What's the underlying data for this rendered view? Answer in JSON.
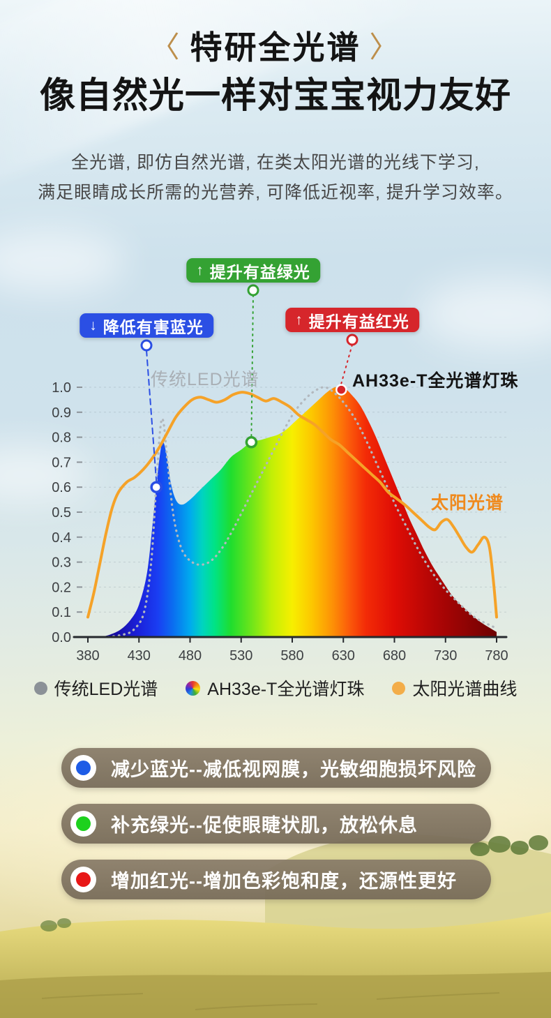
{
  "header": {
    "bracket_left": "〈",
    "bracket_right": "〉",
    "bracket_color": "#bd8f4c",
    "title": "特研全光谱",
    "subtitle": "像自然光一样对宝宝视力友好",
    "desc_line1": "全光谱, 即仿自然光谱, 在类太阳光谱的光线下学习,",
    "desc_line2": "满足眼睛成长所需的光营养, 可降低近视率, 提升学习效率。"
  },
  "chart_data": {
    "type": "area",
    "title": "",
    "xlabel": "",
    "ylabel": "",
    "xlim": [
      380,
      780
    ],
    "ylim": [
      0,
      1
    ],
    "grid": true,
    "xticks": [
      380,
      430,
      480,
      530,
      580,
      630,
      680,
      730,
      780
    ],
    "yticks": [
      "1.0",
      "0.9",
      "0.8",
      "0.7",
      "0.6",
      "0.5",
      "0.4",
      "0.3",
      "0.2",
      "0.1",
      "0.0"
    ],
    "series": [
      {
        "id": "ah33e",
        "name": "AH33e-T全光谱灯珠",
        "kind": "area",
        "fill": "spectrum",
        "points": [
          [
            393,
            0
          ],
          [
            402,
            0.01
          ],
          [
            412,
            0.03
          ],
          [
            422,
            0.07
          ],
          [
            430,
            0.13
          ],
          [
            438,
            0.26
          ],
          [
            444,
            0.48
          ],
          [
            449,
            0.68
          ],
          [
            453,
            0.78
          ],
          [
            457,
            0.73
          ],
          [
            461,
            0.62
          ],
          [
            466,
            0.55
          ],
          [
            472,
            0.53
          ],
          [
            480,
            0.55
          ],
          [
            490,
            0.59
          ],
          [
            500,
            0.63
          ],
          [
            510,
            0.67
          ],
          [
            520,
            0.72
          ],
          [
            530,
            0.75
          ],
          [
            540,
            0.78
          ],
          [
            550,
            0.79
          ],
          [
            558,
            0.8
          ],
          [
            566,
            0.81
          ],
          [
            574,
            0.83
          ],
          [
            582,
            0.86
          ],
          [
            590,
            0.89
          ],
          [
            598,
            0.92
          ],
          [
            606,
            0.95
          ],
          [
            614,
            0.98
          ],
          [
            622,
            1.0
          ],
          [
            630,
            1.0
          ],
          [
            638,
            0.97
          ],
          [
            646,
            0.93
          ],
          [
            654,
            0.87
          ],
          [
            662,
            0.8
          ],
          [
            670,
            0.72
          ],
          [
            678,
            0.64
          ],
          [
            686,
            0.56
          ],
          [
            694,
            0.48
          ],
          [
            702,
            0.41
          ],
          [
            710,
            0.34
          ],
          [
            718,
            0.28
          ],
          [
            726,
            0.23
          ],
          [
            734,
            0.18
          ],
          [
            742,
            0.14
          ],
          [
            750,
            0.11
          ],
          [
            758,
            0.08
          ],
          [
            766,
            0.055
          ],
          [
            774,
            0.035
          ],
          [
            780,
            0.02
          ]
        ]
      },
      {
        "id": "led",
        "name": "传统LED光谱",
        "kind": "line",
        "dash": "dotted",
        "color": "#b2b8be",
        "width": 3.2,
        "points": [
          [
            400,
            0
          ],
          [
            415,
            0.01
          ],
          [
            425,
            0.03
          ],
          [
            435,
            0.1
          ],
          [
            442,
            0.3
          ],
          [
            447,
            0.62
          ],
          [
            451,
            0.84
          ],
          [
            454,
            0.86
          ],
          [
            458,
            0.7
          ],
          [
            464,
            0.48
          ],
          [
            472,
            0.35
          ],
          [
            482,
            0.3
          ],
          [
            492,
            0.29
          ],
          [
            502,
            0.31
          ],
          [
            512,
            0.36
          ],
          [
            522,
            0.43
          ],
          [
            532,
            0.51
          ],
          [
            542,
            0.59
          ],
          [
            552,
            0.67
          ],
          [
            562,
            0.75
          ],
          [
            572,
            0.83
          ],
          [
            582,
            0.9
          ],
          [
            592,
            0.95
          ],
          [
            602,
            0.985
          ],
          [
            612,
            1.0
          ],
          [
            622,
            0.975
          ],
          [
            632,
            0.93
          ],
          [
            642,
            0.87
          ],
          [
            652,
            0.79
          ],
          [
            662,
            0.7
          ],
          [
            672,
            0.61
          ],
          [
            682,
            0.52
          ],
          [
            692,
            0.44
          ],
          [
            702,
            0.36
          ],
          [
            712,
            0.29
          ],
          [
            722,
            0.23
          ],
          [
            732,
            0.18
          ],
          [
            742,
            0.14
          ],
          [
            752,
            0.1
          ],
          [
            762,
            0.07
          ],
          [
            772,
            0.05
          ],
          [
            780,
            0.035
          ]
        ]
      },
      {
        "id": "solar",
        "name": "太阳光谱",
        "kind": "line",
        "dash": "solid",
        "color": "#f5a228",
        "width": 4,
        "points": [
          [
            380,
            0.08
          ],
          [
            386,
            0.18
          ],
          [
            392,
            0.3
          ],
          [
            398,
            0.42
          ],
          [
            404,
            0.52
          ],
          [
            410,
            0.58
          ],
          [
            418,
            0.62
          ],
          [
            426,
            0.64
          ],
          [
            434,
            0.67
          ],
          [
            442,
            0.71
          ],
          [
            450,
            0.76
          ],
          [
            458,
            0.82
          ],
          [
            466,
            0.88
          ],
          [
            474,
            0.92
          ],
          [
            482,
            0.95
          ],
          [
            490,
            0.96
          ],
          [
            498,
            0.95
          ],
          [
            506,
            0.94
          ],
          [
            514,
            0.95
          ],
          [
            522,
            0.97
          ],
          [
            530,
            0.98
          ],
          [
            538,
            0.975
          ],
          [
            546,
            0.96
          ],
          [
            554,
            0.945
          ],
          [
            562,
            0.955
          ],
          [
            570,
            0.94
          ],
          [
            578,
            0.92
          ],
          [
            586,
            0.89
          ],
          [
            594,
            0.87
          ],
          [
            602,
            0.85
          ],
          [
            610,
            0.82
          ],
          [
            618,
            0.79
          ],
          [
            626,
            0.77
          ],
          [
            634,
            0.74
          ],
          [
            642,
            0.71
          ],
          [
            650,
            0.68
          ],
          [
            658,
            0.65
          ],
          [
            666,
            0.62
          ],
          [
            674,
            0.58
          ],
          [
            682,
            0.555
          ],
          [
            690,
            0.53
          ],
          [
            698,
            0.5
          ],
          [
            706,
            0.47
          ],
          [
            714,
            0.44
          ],
          [
            720,
            0.43
          ],
          [
            726,
            0.46
          ],
          [
            732,
            0.47
          ],
          [
            738,
            0.44
          ],
          [
            744,
            0.4
          ],
          [
            750,
            0.36
          ],
          [
            756,
            0.34
          ],
          [
            762,
            0.37
          ],
          [
            768,
            0.4
          ],
          [
            773,
            0.36
          ],
          [
            777,
            0.22
          ],
          [
            780,
            0.08
          ]
        ]
      }
    ],
    "spectrum_gradient": [
      {
        "offset": "0%",
        "color": "#140c6e"
      },
      {
        "offset": "7%",
        "color": "#180fa6"
      },
      {
        "offset": "12%",
        "color": "#1b1fd8"
      },
      {
        "offset": "17%",
        "color": "#1a3df2"
      },
      {
        "offset": "21%",
        "color": "#0a70f0"
      },
      {
        "offset": "25%",
        "color": "#00aaee"
      },
      {
        "offset": "28%",
        "color": "#00d4c0"
      },
      {
        "offset": "31%",
        "color": "#00e386"
      },
      {
        "offset": "35%",
        "color": "#1fdd2e"
      },
      {
        "offset": "40%",
        "color": "#6ee51a"
      },
      {
        "offset": "45%",
        "color": "#c3ef06"
      },
      {
        "offset": "50%",
        "color": "#f7ef00"
      },
      {
        "offset": "55%",
        "color": "#fdc500"
      },
      {
        "offset": "60%",
        "color": "#fd8f06"
      },
      {
        "offset": "64%",
        "color": "#fb5a0a"
      },
      {
        "offset": "68%",
        "color": "#f32b07"
      },
      {
        "offset": "75%",
        "color": "#df0d05"
      },
      {
        "offset": "85%",
        "color": "#b00505"
      },
      {
        "offset": "100%",
        "color": "#6e0202"
      }
    ],
    "annotations": [
      {
        "id": "blue",
        "label": "降低有害蓝光",
        "arrow_glyph": "↓",
        "color": "#2b4fe4",
        "line_style": "dashed",
        "marker": "hollow",
        "point": {
          "x": 447,
          "y": 0.6
        }
      },
      {
        "id": "green",
        "label": "提升有益绿光",
        "arrow_glyph": "↑",
        "color": "#34a233",
        "line_style": "dotted",
        "marker": "hollow",
        "point": {
          "x": 540,
          "y": 0.78
        }
      },
      {
        "id": "red",
        "label": "提升有益红光",
        "arrow_glyph": "↑",
        "color": "#d6262b",
        "line_style": "dotted",
        "marker": "solid",
        "point": {
          "x": 628,
          "y": 0.99
        }
      }
    ],
    "curve_labels": [
      {
        "text": "传统LED光谱",
        "color": "#a9afb5"
      },
      {
        "text": "AH33e-T全光谱灯珠",
        "color": "#141414"
      },
      {
        "text": "太阳光谱",
        "color": "#ef8a1e"
      }
    ]
  },
  "legend": {
    "items": [
      {
        "label": "传统LED光谱",
        "swatch": "gray",
        "color": "#8b9197"
      },
      {
        "label": "AH33e-T全光谱灯珠",
        "swatch": "rainbow",
        "color": "#multi"
      },
      {
        "label": "太阳光谱曲线",
        "swatch": "orange",
        "color": "#f3ad49"
      }
    ]
  },
  "benefits": [
    {
      "dot_color": "#1e5ce6",
      "text": "减少蓝光--减低视网膜，光敏细胞损坏风险"
    },
    {
      "dot_color": "#1dd11d",
      "text": "补充绿光--促使眼睫状肌，放松休息"
    },
    {
      "dot_color": "#e81717",
      "text": "增加红光--增加色彩饱和度，还源性更好"
    }
  ]
}
